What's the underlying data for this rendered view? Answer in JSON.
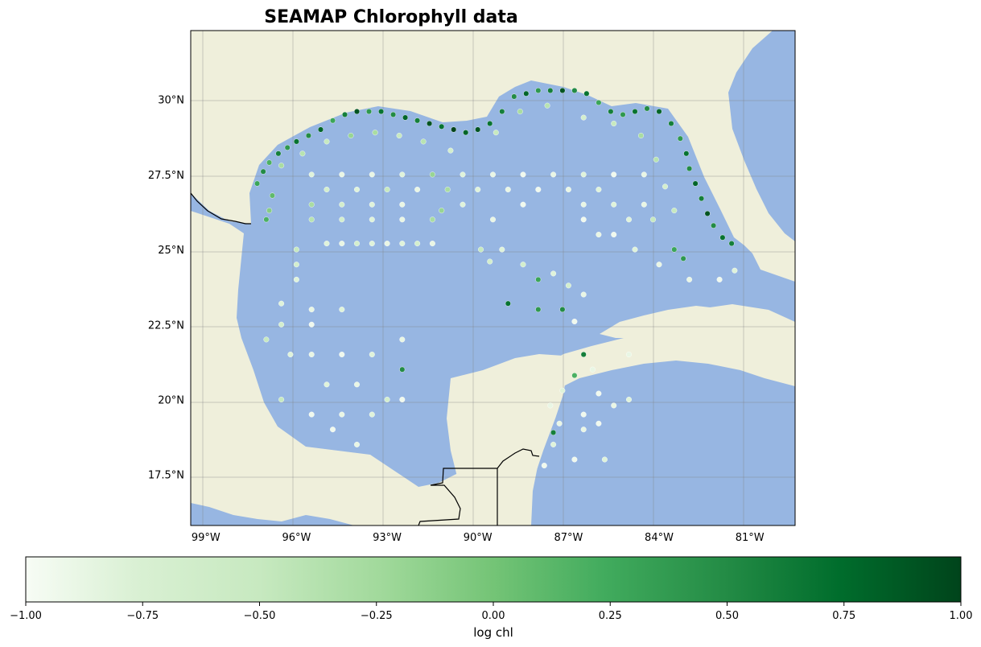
{
  "chart_data": {
    "type": "scatter",
    "title": "SEAMAP Chlorophyll data",
    "projection": "PlateCarree",
    "extent": {
      "lon": [
        -99.5,
        -79.5
      ],
      "lat": [
        15.8,
        32.3
      ]
    },
    "gridlines": true,
    "lon_ticks": [
      -99,
      -96,
      -93,
      -90,
      -87,
      -84,
      -81
    ],
    "lon_tick_labels": [
      "99°W",
      "96°W",
      "93°W",
      "90°W",
      "87°W",
      "84°W",
      "81°W"
    ],
    "lat_ticks": [
      17.5,
      20,
      22.5,
      25,
      27.5,
      30
    ],
    "lat_tick_labels": [
      "17.5°N",
      "20°N",
      "22.5°N",
      "25°N",
      "27.5°N",
      "30°N"
    ],
    "colors": {
      "ocean": "#97b6e2",
      "land": "#efefdb",
      "border": "#000000"
    },
    "colormap": "Greens",
    "colorbar": {
      "label": "log chl",
      "range": [
        -1.0,
        1.0
      ],
      "ticks": [
        -1.0,
        -0.75,
        -0.5,
        -0.25,
        0.0,
        0.25,
        0.5,
        0.75,
        1.0
      ],
      "tick_labels": [
        "−1.00",
        "−0.75",
        "−0.50",
        "−0.25",
        "0.00",
        "0.25",
        "0.50",
        "0.75",
        "1.00"
      ],
      "placement": "bottom"
    },
    "points_description": "log chlorophyll values at sampling stations",
    "points": [
      [
        -97.3,
        27.2,
        0.3
      ],
      [
        -97.1,
        27.6,
        0.5
      ],
      [
        -96.9,
        27.9,
        0.2
      ],
      [
        -96.6,
        28.2,
        0.6
      ],
      [
        -96.3,
        28.4,
        0.4
      ],
      [
        -96.0,
        28.6,
        0.7
      ],
      [
        -95.6,
        28.8,
        0.5
      ],
      [
        -95.2,
        29.0,
        0.8
      ],
      [
        -94.8,
        29.3,
        0.3
      ],
      [
        -94.4,
        29.5,
        0.6
      ],
      [
        -94.0,
        29.6,
        0.9
      ],
      [
        -93.6,
        29.6,
        0.4
      ],
      [
        -93.2,
        29.6,
        0.7
      ],
      [
        -92.8,
        29.5,
        0.5
      ],
      [
        -92.4,
        29.4,
        0.8
      ],
      [
        -92.0,
        29.3,
        0.6
      ],
      [
        -91.6,
        29.2,
        0.9
      ],
      [
        -91.2,
        29.1,
        0.7
      ],
      [
        -90.8,
        29.0,
        1.0
      ],
      [
        -90.4,
        28.9,
        0.8
      ],
      [
        -90.0,
        29.0,
        0.9
      ],
      [
        -89.6,
        29.2,
        0.7
      ],
      [
        -89.2,
        29.6,
        0.6
      ],
      [
        -88.8,
        30.1,
        0.5
      ],
      [
        -88.4,
        30.2,
        0.8
      ],
      [
        -88.0,
        30.3,
        0.4
      ],
      [
        -87.6,
        30.3,
        0.6
      ],
      [
        -87.2,
        30.3,
        0.9
      ],
      [
        -86.8,
        30.3,
        0.5
      ],
      [
        -86.4,
        30.2,
        0.7
      ],
      [
        -86.0,
        29.9,
        0.3
      ],
      [
        -85.6,
        29.6,
        0.6
      ],
      [
        -85.2,
        29.5,
        0.4
      ],
      [
        -84.8,
        29.6,
        0.7
      ],
      [
        -84.4,
        29.7,
        0.5
      ],
      [
        -84.0,
        29.6,
        0.8
      ],
      [
        -83.6,
        29.2,
        0.6
      ],
      [
        -83.3,
        28.7,
        0.4
      ],
      [
        -83.1,
        28.2,
        0.7
      ],
      [
        -83.0,
        27.7,
        0.5
      ],
      [
        -82.8,
        27.2,
        0.8
      ],
      [
        -82.6,
        26.7,
        0.6
      ],
      [
        -82.4,
        26.2,
        0.9
      ],
      [
        -82.2,
        25.8,
        0.5
      ],
      [
        -81.9,
        25.4,
        0.7
      ],
      [
        -81.6,
        25.2,
        0.6
      ],
      [
        -83.5,
        25.0,
        0.3
      ],
      [
        -83.2,
        24.7,
        0.4
      ],
      [
        -96.5,
        27.8,
        -0.3
      ],
      [
        -95.8,
        28.2,
        -0.4
      ],
      [
        -95.0,
        28.6,
        -0.5
      ],
      [
        -94.2,
        28.8,
        -0.2
      ],
      [
        -93.4,
        28.9,
        -0.3
      ],
      [
        -92.6,
        28.8,
        -0.5
      ],
      [
        -91.8,
        28.6,
        -0.4
      ],
      [
        -90.9,
        28.3,
        -0.6
      ],
      [
        -89.4,
        28.9,
        -0.5
      ],
      [
        -88.6,
        29.6,
        -0.3
      ],
      [
        -87.7,
        29.8,
        -0.4
      ],
      [
        -86.5,
        29.4,
        -0.6
      ],
      [
        -85.5,
        29.2,
        -0.5
      ],
      [
        -84.6,
        28.8,
        -0.3
      ],
      [
        -84.1,
        28.0,
        -0.4
      ],
      [
        -83.8,
        27.1,
        -0.6
      ],
      [
        -83.5,
        26.3,
        -0.5
      ],
      [
        -96.8,
        26.8,
        0.1
      ],
      [
        -96.9,
        26.3,
        -0.1
      ],
      [
        -97.0,
        26.0,
        0.2
      ],
      [
        -95.5,
        27.5,
        -0.7
      ],
      [
        -94.5,
        27.5,
        -0.8
      ],
      [
        -93.5,
        27.5,
        -0.8
      ],
      [
        -92.5,
        27.5,
        -0.7
      ],
      [
        -91.5,
        27.5,
        -0.2
      ],
      [
        -90.5,
        27.5,
        -0.7
      ],
      [
        -89.5,
        27.5,
        -0.8
      ],
      [
        -88.5,
        27.5,
        -0.9
      ],
      [
        -87.5,
        27.5,
        -0.8
      ],
      [
        -86.5,
        27.5,
        -0.7
      ],
      [
        -85.5,
        27.5,
        -0.9
      ],
      [
        -84.5,
        27.5,
        -0.8
      ],
      [
        -95.0,
        27.0,
        -0.6
      ],
      [
        -94.0,
        27.0,
        -0.7
      ],
      [
        -93.0,
        27.0,
        -0.5
      ],
      [
        -92.0,
        27.0,
        -0.8
      ],
      [
        -91.0,
        27.0,
        -0.3
      ],
      [
        -90.0,
        27.0,
        -0.7
      ],
      [
        -89.0,
        27.0,
        -0.8
      ],
      [
        -88.0,
        27.0,
        -0.9
      ],
      [
        -87.0,
        27.0,
        -0.8
      ],
      [
        -86.0,
        27.0,
        -0.7
      ],
      [
        -95.5,
        26.5,
        -0.3
      ],
      [
        -94.5,
        26.5,
        -0.6
      ],
      [
        -93.5,
        26.5,
        -0.7
      ],
      [
        -92.5,
        26.5,
        -0.8
      ],
      [
        -91.2,
        26.3,
        -0.2
      ],
      [
        -90.5,
        26.5,
        -0.7
      ],
      [
        -88.5,
        26.5,
        -0.9
      ],
      [
        -86.5,
        26.5,
        -0.8
      ],
      [
        -85.5,
        26.5,
        -0.7
      ],
      [
        -84.5,
        26.5,
        -0.8
      ],
      [
        -95.5,
        26.0,
        -0.4
      ],
      [
        -94.5,
        26.0,
        -0.6
      ],
      [
        -93.5,
        26.0,
        -0.7
      ],
      [
        -92.5,
        26.0,
        -0.8
      ],
      [
        -91.5,
        26.0,
        -0.3
      ],
      [
        -89.5,
        26.0,
        -0.8
      ],
      [
        -86.5,
        26.0,
        -0.9
      ],
      [
        -85.0,
        26.0,
        -0.7
      ],
      [
        -84.2,
        26.0,
        -0.5
      ],
      [
        -95.0,
        25.2,
        -0.7
      ],
      [
        -94.5,
        25.2,
        -0.8
      ],
      [
        -94.0,
        25.2,
        -0.6
      ],
      [
        -93.5,
        25.2,
        -0.7
      ],
      [
        -93.0,
        25.2,
        -0.8
      ],
      [
        -92.5,
        25.2,
        -0.7
      ],
      [
        -92.0,
        25.2,
        -0.6
      ],
      [
        -91.5,
        25.2,
        -0.8
      ],
      [
        -89.9,
        25.0,
        -0.5
      ],
      [
        -89.6,
        24.6,
        -0.6
      ],
      [
        -89.2,
        25.0,
        -0.7
      ],
      [
        -86.0,
        25.5,
        -0.8
      ],
      [
        -85.5,
        25.5,
        -0.9
      ],
      [
        -84.8,
        25.0,
        -0.7
      ],
      [
        -84.0,
        24.5,
        -0.8
      ],
      [
        -83.0,
        24.0,
        -0.8
      ],
      [
        -82.0,
        24.0,
        -0.9
      ],
      [
        -81.5,
        24.3,
        -0.7
      ],
      [
        -96.0,
        25.0,
        -0.5
      ],
      [
        -96.0,
        24.5,
        -0.6
      ],
      [
        -96.0,
        24.0,
        -0.7
      ],
      [
        -88.5,
        24.5,
        -0.6
      ],
      [
        -88.0,
        24.0,
        0.3
      ],
      [
        -87.5,
        24.2,
        -0.7
      ],
      [
        -87.0,
        23.8,
        -0.6
      ],
      [
        -87.2,
        23.0,
        0.5
      ],
      [
        -86.5,
        23.5,
        -0.8
      ],
      [
        -86.8,
        22.6,
        -0.9
      ],
      [
        -88.0,
        23.0,
        0.4
      ],
      [
        -89.0,
        23.2,
        0.7
      ],
      [
        -96.5,
        23.2,
        -0.7
      ],
      [
        -95.5,
        23.0,
        -0.8
      ],
      [
        -94.5,
        23.0,
        -0.7
      ],
      [
        -95.5,
        22.5,
        -0.9
      ],
      [
        -96.5,
        22.5,
        -0.6
      ],
      [
        -97.0,
        22.0,
        -0.5
      ],
      [
        -96.2,
        21.5,
        -0.7
      ],
      [
        -95.5,
        21.5,
        -0.8
      ],
      [
        -94.5,
        21.5,
        -0.9
      ],
      [
        -93.5,
        21.5,
        -0.7
      ],
      [
        -92.5,
        22.0,
        -0.8
      ],
      [
        -92.5,
        21.0,
        0.5
      ],
      [
        -95.0,
        20.5,
        -0.7
      ],
      [
        -94.0,
        20.5,
        -0.8
      ],
      [
        -95.5,
        19.5,
        -0.9
      ],
      [
        -94.5,
        19.5,
        -0.8
      ],
      [
        -93.5,
        19.5,
        -0.7
      ],
      [
        -94.8,
        19.0,
        -0.9
      ],
      [
        -94.0,
        18.5,
        -0.8
      ],
      [
        -93.0,
        20.0,
        -0.6
      ],
      [
        -92.5,
        20.0,
        -0.9
      ],
      [
        -96.5,
        20.0,
        -0.5
      ],
      [
        -86.5,
        21.5,
        0.6
      ],
      [
        -86.2,
        21.0,
        -0.8
      ],
      [
        -86.8,
        20.8,
        0.2
      ],
      [
        -87.2,
        20.3,
        -0.7
      ],
      [
        -87.6,
        19.8,
        -0.8
      ],
      [
        -86.0,
        20.2,
        -0.9
      ],
      [
        -85.5,
        19.8,
        -0.8
      ],
      [
        -85.0,
        20.0,
        -0.7
      ],
      [
        -86.5,
        19.5,
        -0.9
      ],
      [
        -87.3,
        19.2,
        -0.8
      ],
      [
        -87.5,
        18.5,
        -0.7
      ],
      [
        -87.8,
        17.8,
        -0.9
      ],
      [
        -87.5,
        18.9,
        0.6
      ],
      [
        -86.8,
        18.0,
        -0.9
      ],
      [
        -85.8,
        18.0,
        -0.7
      ],
      [
        -86.5,
        19.0,
        -0.8
      ],
      [
        -86.0,
        19.2,
        -0.9
      ],
      [
        -85.0,
        21.5,
        -0.8
      ]
    ]
  }
}
